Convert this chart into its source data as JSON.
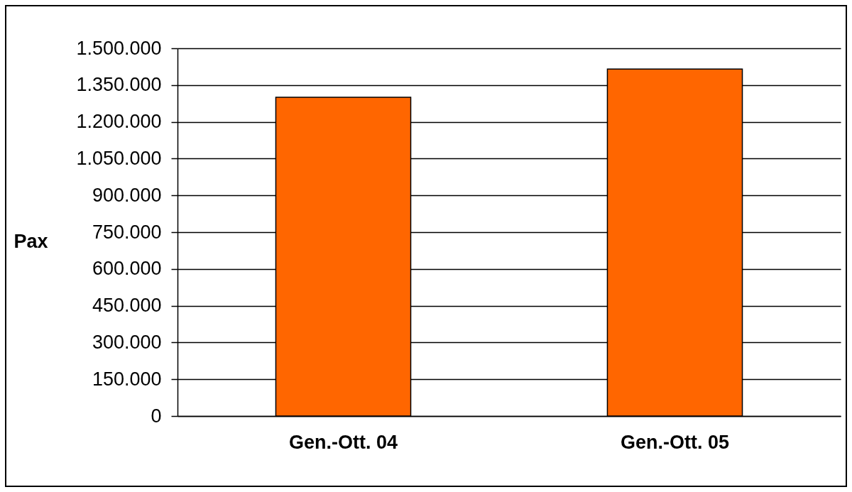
{
  "chart_data": {
    "type": "bar",
    "ylabel": "Pax",
    "categories": [
      "Gen.-Ott. 04",
      "Gen.-Ott. 05"
    ],
    "values": [
      1300000,
      1415000
    ],
    "color": "#ff6600",
    "ylim": [
      0,
      1500000
    ],
    "yticks": [
      0,
      {
        "value": 150000,
        "label": "150.000"
      },
      {
        "value": 300000,
        "label": "300.000"
      },
      {
        "value": 450000,
        "label": "450.000"
      },
      {
        "value": 600000,
        "label": "600.000"
      },
      {
        "value": 750000,
        "label": "750.000"
      },
      {
        "value": 900000,
        "label": "900.000"
      },
      {
        "value": 1050000,
        "label": "1.050.000"
      },
      {
        "value": 1200000,
        "label": "1.200.000"
      },
      {
        "value": 1350000,
        "label": "1.350.000"
      },
      {
        "value": 1500000,
        "label": "1.500.000"
      }
    ],
    "grid": "y"
  }
}
